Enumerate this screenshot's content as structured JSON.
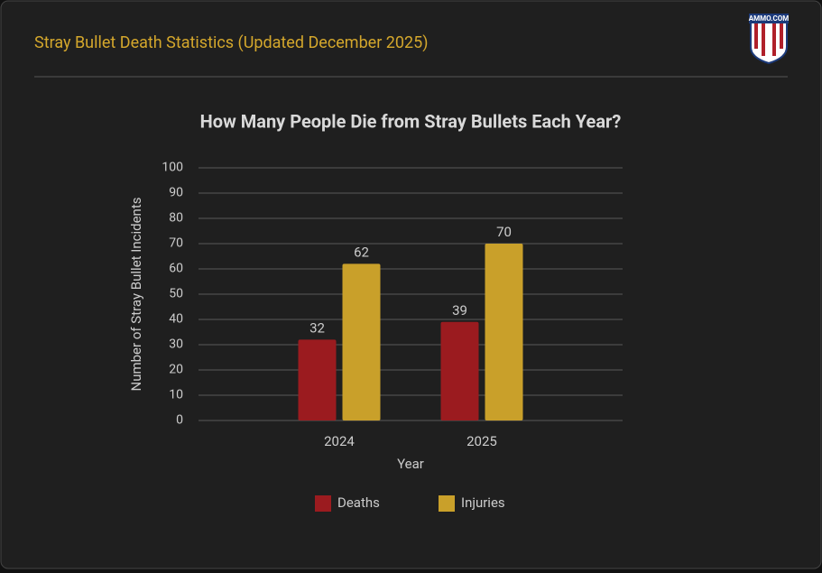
{
  "header": {
    "title": "Stray Bullet Death Statistics (Updated December 2025)",
    "logo": "AMMO.COM"
  },
  "chart_data": {
    "type": "bar",
    "title": "How Many People Die from Stray Bullets Each Year?",
    "x_label": "Year",
    "y_label": "Number of Stray Bullet Incidents",
    "categories": [
      "2024",
      "2025"
    ],
    "series": [
      {
        "name": "Deaths",
        "color": "#9b1b1f",
        "values": [
          32,
          39
        ]
      },
      {
        "name": "Injuries",
        "color": "#c9a02a",
        "values": [
          62,
          70
        ]
      }
    ],
    "ylim": [
      0,
      100
    ],
    "yticks": [
      0,
      10,
      20,
      30,
      40,
      50,
      60,
      70,
      80,
      90,
      100
    ],
    "grid": true,
    "legend": "bottom"
  }
}
